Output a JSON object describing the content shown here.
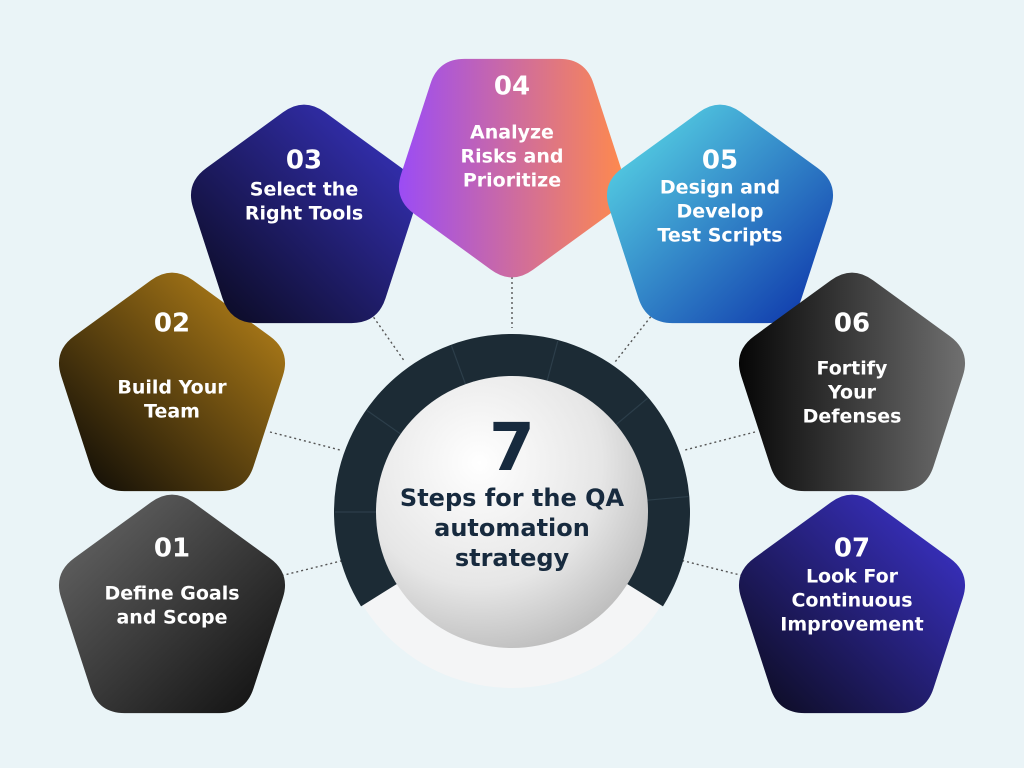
{
  "center": {
    "number": "7",
    "lines": [
      "Steps for the QA",
      "automation",
      "strategy"
    ]
  },
  "steps": [
    {
      "num": "01",
      "lines": [
        "Define Goals",
        "and Scope"
      ],
      "colors": [
        "#6b6b6b",
        "#0d0d0d"
      ]
    },
    {
      "num": "02",
      "lines": [
        "Build Your",
        "Team"
      ],
      "colors": [
        "#050505",
        "#c28a1a"
      ]
    },
    {
      "num": "03",
      "lines": [
        "Select the",
        "Right Tools"
      ],
      "colors": [
        "#3a35c8",
        "#080818"
      ]
    },
    {
      "num": "04",
      "lines": [
        "Analyze",
        "Risks and",
        "Prioritize"
      ],
      "colors": [
        "#9b4cf5",
        "#ff8a4c"
      ]
    },
    {
      "num": "05",
      "lines": [
        "Design and",
        "Develop",
        "Test Scripts"
      ],
      "colors": [
        "#5ee3ea",
        "#0a2ea8"
      ]
    },
    {
      "num": "06",
      "lines": [
        "Fortify",
        "Your",
        "Defenses"
      ],
      "colors": [
        "#060606",
        "#707070"
      ]
    },
    {
      "num": "07",
      "lines": [
        "Look For",
        "Continuous",
        "Improvement"
      ],
      "colors": [
        "#3f35d6",
        "#0a0a18"
      ]
    }
  ],
  "colors": {
    "background": "#eaf4f7",
    "ring": "#1c2b35",
    "ring_light": "#f4f5f6",
    "center_text": "#172a3e"
  }
}
